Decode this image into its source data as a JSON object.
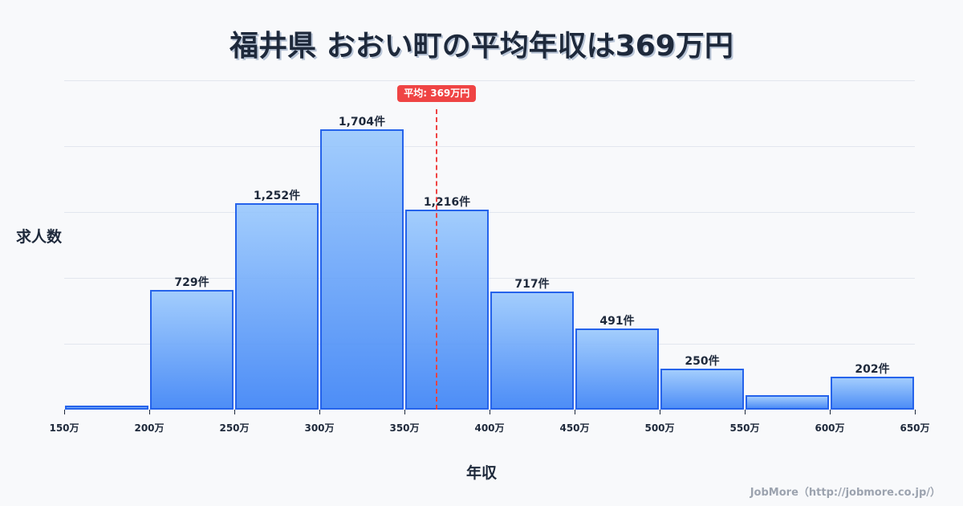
{
  "title": "福井県 おおい町の平均年収は369万円",
  "credit": "JobMore（http://jobmore.co.jp/）",
  "mean_badge": "平均: 369万円",
  "chart_data": {
    "type": "bar",
    "title": "福井県 おおい町の平均年収は369万円",
    "xlabel": "年収",
    "ylabel": "求人数",
    "bins": [
      "150-200万",
      "200-250万",
      "250-300万",
      "300-350万",
      "350-400万",
      "400-450万",
      "450-500万",
      "500-550万",
      "550-600万",
      "600-650万"
    ],
    "categories": [
      "150万",
      "200万",
      "250万",
      "300万",
      "350万",
      "400万",
      "450万",
      "500万",
      "550万",
      "600万"
    ],
    "values": [
      24,
      729,
      1252,
      1704,
      1216,
      717,
      491,
      250,
      88,
      202
    ],
    "value_labels": [
      "",
      "729件",
      "1,252件",
      "1,704件",
      "1,216件",
      "717件",
      "491件",
      "250件",
      "",
      "202件"
    ],
    "x_ticks": [
      "150万",
      "200万",
      "250万",
      "300万",
      "350万",
      "400万",
      "450万",
      "500万",
      "550万",
      "600万",
      "650万"
    ],
    "xlim": [
      150,
      650
    ],
    "ylim": [
      0,
      2000
    ],
    "y_gridlines": [
      400,
      800,
      1200,
      1600,
      2000
    ],
    "grid": true,
    "mean": 369,
    "mean_label": "平均: 369万円",
    "colors": {
      "bar_top": "#a5cdfc",
      "bar_bottom": "#4f8df5",
      "bar_border": "#2563eb",
      "mean_line": "#ef4444",
      "text": "#1e293b",
      "gridline": "#e2e6ee"
    }
  }
}
